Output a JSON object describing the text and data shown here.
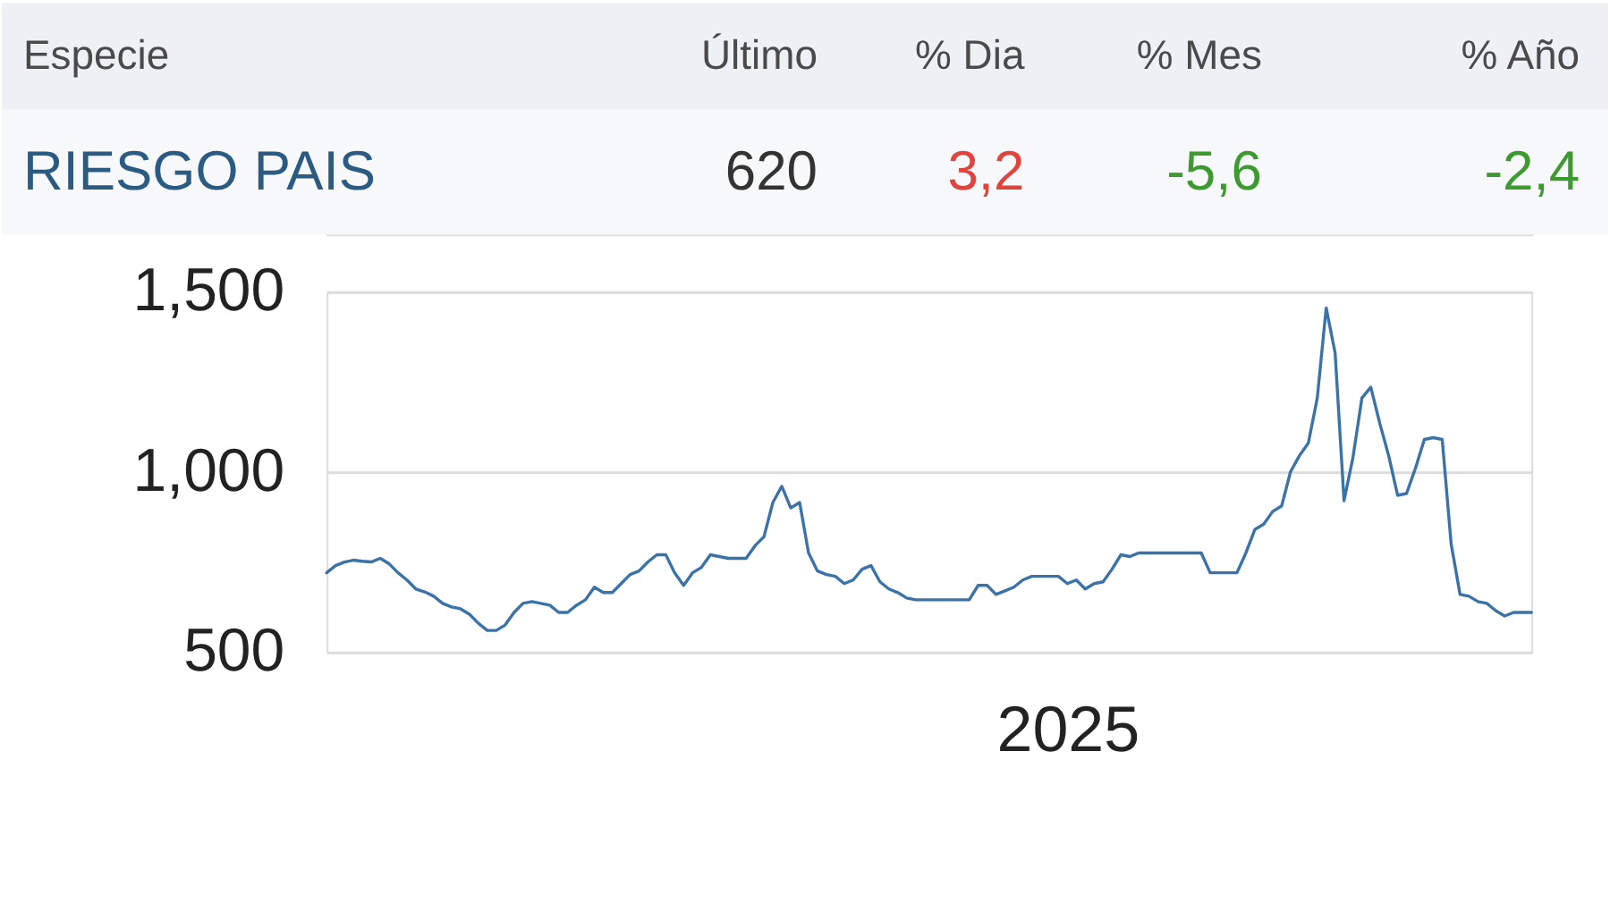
{
  "chart_data": [
    {
      "type": "other",
      "ylabel": "Especie",
      "y_categories": [
        "RIESGO PAIS"
      ],
      "categories": [
        "Último",
        "% Dia",
        "% Mes",
        "% Año"
      ],
      "value_labels": [
        "620",
        "3,2",
        "-5,6",
        "-2,4"
      ]
    },
    {
      "type": "line",
      "categories": [
        null,
        null,
        null,
        null,
        null,
        null,
        null,
        null,
        null,
        null,
        null,
        null,
        null,
        null,
        null,
        null,
        null,
        null,
        null,
        null,
        null,
        null,
        null,
        null,
        null,
        null,
        null,
        null,
        null,
        null,
        null,
        null,
        null,
        null,
        null,
        null,
        null,
        null,
        null,
        null,
        null,
        null,
        null,
        null,
        null,
        null,
        null,
        null,
        null,
        null,
        null,
        null,
        null,
        null,
        null,
        null,
        null,
        null,
        null,
        null,
        null,
        null,
        null,
        null,
        null,
        null,
        null,
        null,
        null,
        null,
        null,
        null,
        null,
        null,
        null,
        null,
        null,
        null,
        null,
        null,
        null,
        null,
        null,
        "2025",
        null,
        null,
        null,
        null,
        null,
        null,
        null,
        null,
        null,
        null,
        null,
        null,
        null,
        null,
        null,
        null,
        null,
        null,
        null,
        null,
        null,
        null,
        null,
        null,
        null,
        null,
        null,
        null,
        null,
        null,
        null,
        null,
        null,
        null,
        null,
        null,
        null,
        null,
        null,
        null,
        null,
        null,
        null,
        null,
        null,
        null,
        null,
        null,
        null,
        null,
        null,
        null
      ],
      "series": [
        {
          "color": "#3b73a8",
          "values": [
            720,
            740,
            750,
            755,
            752,
            750,
            760,
            745,
            720,
            700,
            675,
            667,
            655,
            635,
            625,
            620,
            605,
            580,
            560,
            560,
            575,
            610,
            635,
            640,
            635,
            630,
            610,
            610,
            630,
            645,
            680,
            665,
            665,
            690,
            715,
            725,
            750,
            770,
            770,
            720,
            685,
            720,
            735,
            770,
            765,
            760,
            760,
            760,
            795,
            820,
            915,
            960,
            900,
            915,
            775,
            725,
            715,
            710,
            690,
            700,
            730,
            740,
            695,
            675,
            665,
            650,
            645,
            645,
            645,
            645,
            645,
            645,
            645,
            685,
            685,
            660,
            670,
            680,
            700,
            710,
            710,
            710,
            710,
            690,
            700,
            675,
            690,
            695,
            730,
            770,
            765,
            775,
            775,
            775,
            775,
            775,
            775,
            775,
            775,
            720,
            720,
            720,
            720,
            775,
            840,
            855,
            890,
            905,
            1000,
            1045,
            1080,
            1205,
            1455,
            1330,
            920,
            1040,
            1205,
            1235,
            1135,
            1045,
            935,
            940,
            1010,
            1090,
            1095,
            1090,
            800,
            660,
            655,
            640,
            635,
            615,
            600,
            610,
            610,
            610
          ]
        }
      ],
      "ylim": [
        500,
        1500
      ],
      "yticks": [
        500,
        {
          "value": 1000,
          "label": "1,000"
        },
        {
          "value": 1500,
          "label": "1,500"
        }
      ],
      "grid": "y"
    }
  ]
}
